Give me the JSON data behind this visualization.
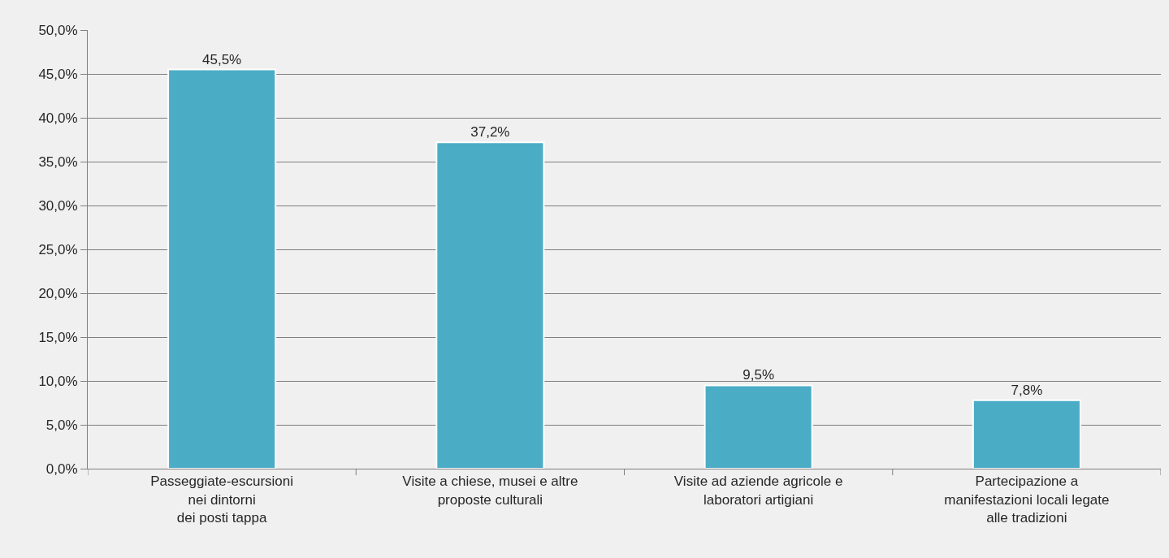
{
  "chart_data": {
    "type": "bar",
    "categories": [
      "Passeggiate-escursioni\nnei dintorni\ndei posti tappa",
      "Visite a chiese, musei e altre\nproposte culturali",
      "Visite ad aziende agricole e\nlaboratori artigiani",
      "Partecipazione a\nmanifestazioni locali legate\nalle tradizioni"
    ],
    "values": [
      45.5,
      37.2,
      9.5,
      7.8
    ],
    "value_labels": [
      "45,5%",
      "37,2%",
      "9,5%",
      "7,8%"
    ],
    "color": "#4bacc6",
    "ylim": [
      0,
      50
    ],
    "yticks": [
      {
        "value": 0,
        "label": "0,0%"
      },
      {
        "value": 5,
        "label": "5,0%"
      },
      {
        "value": 10,
        "label": "10,0%"
      },
      {
        "value": 15,
        "label": "15,0%"
      },
      {
        "value": 20,
        "label": "20,0%"
      },
      {
        "value": 25,
        "label": "25,0%"
      },
      {
        "value": 30,
        "label": "30,0%"
      },
      {
        "value": 35,
        "label": "35,0%"
      },
      {
        "value": 40,
        "label": "40,0%"
      },
      {
        "value": 45,
        "label": "45,0%"
      },
      {
        "value": 50,
        "label": "50,0%"
      }
    ],
    "grid": "y",
    "legend": false
  }
}
